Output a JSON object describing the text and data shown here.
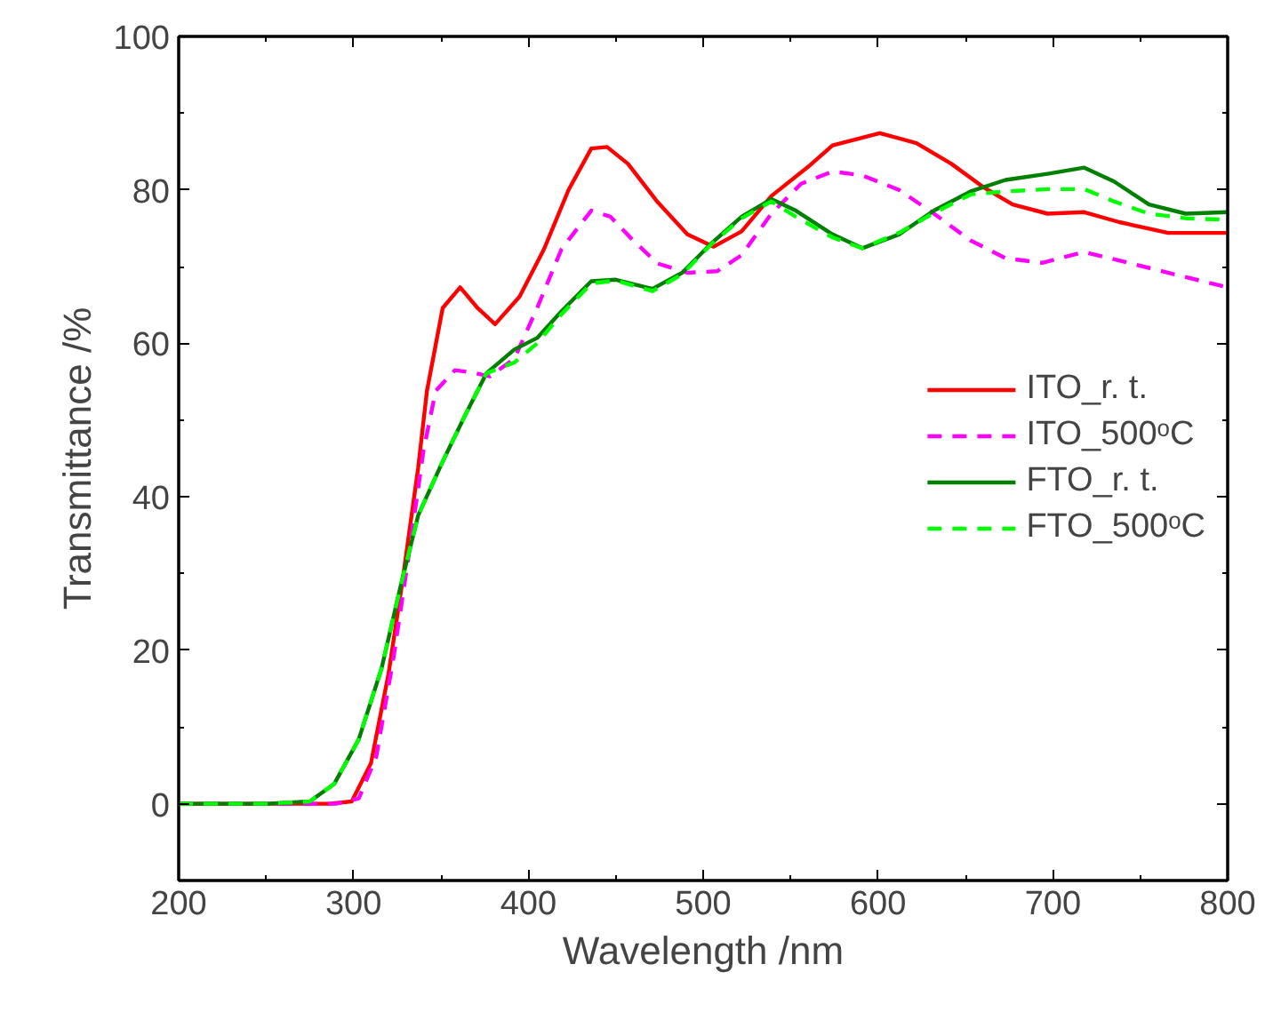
{
  "chart_data": {
    "type": "line",
    "xlabel": "Wavelength /nm",
    "ylabel": "Transmittance /%",
    "xlim": [
      200,
      800
    ],
    "ylim": [
      -10,
      100
    ],
    "xticks": [
      200,
      300,
      400,
      500,
      600,
      700,
      800
    ],
    "yticks": [
      0,
      20,
      40,
      60,
      80,
      100
    ],
    "grid": false,
    "legend": "right",
    "marker": "none",
    "series": [
      {
        "name": "ITO_r. t.",
        "color": "#ff0000",
        "line_style": "solid",
        "x": [
          200,
          250,
          286,
          299,
          310,
          320,
          328,
          337,
          342,
          351,
          361,
          371,
          381,
          395,
          409,
          423,
          436,
          445,
          457,
          474,
          491,
          506,
          522,
          539,
          560,
          574,
          601,
          622,
          642,
          660,
          677,
          697,
          718,
          738,
          766,
          800
        ],
        "values": [
          0,
          0,
          0,
          0.3,
          5.3,
          16.9,
          29,
          43.8,
          53.8,
          64.6,
          67.3,
          64.6,
          62.5,
          66.1,
          72.3,
          80,
          85.4,
          85.6,
          83.4,
          78.4,
          74.2,
          72.6,
          74.6,
          79.2,
          83,
          85.8,
          87.4,
          86.1,
          83.4,
          80.4,
          78.1,
          76.9,
          77.1,
          75.8,
          74.4,
          74.4
        ]
      },
      {
        "name": "ITO_500ᵒC",
        "color": "#ff00ff",
        "line_style": "dashed",
        "x": [
          200,
          250,
          290,
          303,
          313,
          323,
          332,
          340,
          347,
          358,
          368,
          378,
          392,
          405,
          419,
          436,
          447,
          460,
          474,
          491,
          508,
          522,
          539,
          556,
          574,
          591,
          612,
          632,
          653,
          673,
          694,
          718,
          745,
          773,
          800
        ],
        "values": [
          0,
          0,
          0,
          0.7,
          6.1,
          19.2,
          33,
          46,
          53.8,
          56.5,
          56.2,
          55.7,
          58,
          64.6,
          72.3,
          77.3,
          76.5,
          73.4,
          70.4,
          69.2,
          69.4,
          71.5,
          76.9,
          80.8,
          82.4,
          81.9,
          80,
          76.9,
          73.4,
          71.1,
          70.5,
          71.9,
          70.4,
          68.8,
          67.3
        ]
      },
      {
        "name": "FTO_r. t.",
        "color": "#008000",
        "line_style": "solid",
        "x": [
          200,
          250,
          275,
          289,
          303,
          316,
          327,
          337,
          351,
          364,
          376,
          392,
          405,
          419,
          436,
          450,
          471,
          488,
          505,
          522,
          539,
          553,
          574,
          591,
          612,
          632,
          653,
          673,
          697,
          718,
          735,
          755,
          776,
          800
        ],
        "values": [
          0,
          0,
          0.3,
          2.6,
          8.4,
          17.6,
          28.4,
          37.6,
          44.6,
          50.7,
          56.1,
          59.2,
          60.7,
          64.2,
          68.1,
          68.3,
          67.1,
          69.2,
          73.1,
          76.5,
          78.8,
          77.3,
          74.2,
          72.4,
          74.2,
          77.3,
          79.8,
          81.3,
          82.1,
          82.9,
          81.1,
          78.1,
          76.9,
          77.1
        ]
      },
      {
        "name": "FTO_500ᵒC",
        "color": "#00ff00",
        "line_style": "dashed",
        "x": [
          200,
          250,
          275,
          289,
          303,
          316,
          327,
          337,
          351,
          364,
          376,
          392,
          405,
          419,
          436,
          450,
          471,
          488,
          505,
          522,
          539,
          553,
          574,
          591,
          612,
          632,
          653,
          673,
          697,
          718,
          735,
          755,
          776,
          800
        ],
        "values": [
          0,
          0,
          0.3,
          2.6,
          8.4,
          17.6,
          28.4,
          37.6,
          44.6,
          50.7,
          56.1,
          57.5,
          60,
          63.8,
          67.8,
          68.2,
          66.8,
          69,
          73,
          76.3,
          78.5,
          76.5,
          73.8,
          72.4,
          74.4,
          77,
          79.4,
          79.8,
          80.1,
          80.1,
          78.5,
          76.9,
          76.3,
          76.1
        ]
      }
    ]
  }
}
